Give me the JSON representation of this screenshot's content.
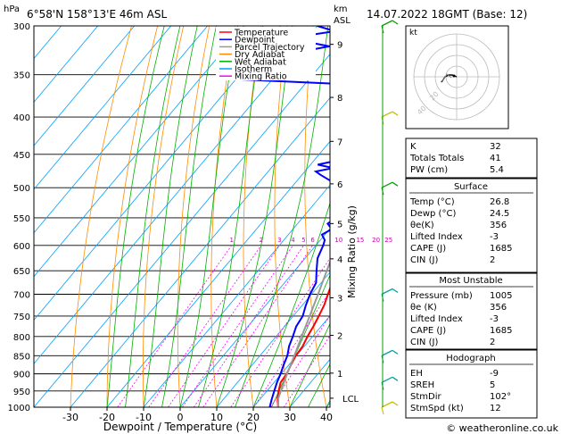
{
  "header": {
    "hpa_label": "hPa",
    "location": "6°58'N 158°13'E 46m ASL",
    "km_label": "km",
    "asl_label": "ASL",
    "datetime": "14.07.2022 18GMT (Base: 12)"
  },
  "legend": [
    {
      "label": "Temperature",
      "color": "#ff0000"
    },
    {
      "label": "Dewpoint",
      "color": "#0000ff"
    },
    {
      "label": "Parcel Trajectory",
      "color": "#999999"
    },
    {
      "label": "Dry Adiabat",
      "color": "#ff8c00"
    },
    {
      "label": "Wet Adiabat",
      "color": "#00b000"
    },
    {
      "label": "Isotherm",
      "color": "#00a0ff"
    },
    {
      "label": "Mixing Ratio",
      "color": "#ff00ff"
    }
  ],
  "chart_data": {
    "type": "skew-t",
    "xlabel": "Dewpoint / Temperature (°C)",
    "ylabel_right": "Mixing Ratio (g/kg)",
    "x_ticks": [
      -30,
      -20,
      -10,
      0,
      10,
      20,
      30,
      40
    ],
    "pressure_ticks": [
      300,
      350,
      400,
      450,
      500,
      550,
      600,
      650,
      700,
      750,
      800,
      850,
      900,
      950,
      1000
    ],
    "km_ticks": [
      {
        "label": "9",
        "p": 318
      },
      {
        "label": "8",
        "p": 376
      },
      {
        "label": "7",
        "p": 432
      },
      {
        "label": "6",
        "p": 494
      },
      {
        "label": "5",
        "p": 560
      },
      {
        "label": "4",
        "p": 626
      },
      {
        "label": "3",
        "p": 708
      },
      {
        "label": "2",
        "p": 797
      },
      {
        "label": "1",
        "p": 898
      },
      {
        "label": "LCL",
        "p": 972
      }
    ],
    "mixing_ratio_labels": [
      "1",
      "2",
      "3",
      "4",
      "5",
      "6",
      "10",
      "15",
      "20",
      "25"
    ],
    "series": [
      {
        "name": "Temperature",
        "points": [
          [
            1000,
            26.8
          ],
          [
            975,
            24.8
          ],
          [
            950,
            23.2
          ],
          [
            925,
            21.8
          ],
          [
            900,
            21.5
          ],
          [
            875,
            20.6
          ],
          [
            850,
            19.8
          ],
          [
            825,
            19.5
          ],
          [
            800,
            18.6
          ],
          [
            775,
            17.9
          ],
          [
            750,
            17
          ],
          [
            725,
            16
          ],
          [
            700,
            14.5
          ],
          [
            675,
            13
          ],
          [
            650,
            11.2
          ],
          [
            625,
            9.4
          ],
          [
            600,
            7.8
          ],
          [
            575,
            6
          ],
          [
            550,
            3.6
          ],
          [
            525,
            1.2
          ],
          [
            500,
            -1.2
          ],
          [
            475,
            -4
          ],
          [
            450,
            -7
          ],
          [
            425,
            -10
          ],
          [
            400,
            -13
          ],
          [
            375,
            -16.5
          ],
          [
            350,
            -20
          ]
        ]
      },
      {
        "name": "Dewpoint",
        "points": [
          [
            1000,
            24.5
          ],
          [
            975,
            23.2
          ],
          [
            950,
            22
          ],
          [
            925,
            20.8
          ],
          [
            900,
            19.8
          ],
          [
            875,
            18.6
          ],
          [
            850,
            17.5
          ],
          [
            825,
            15.8
          ],
          [
            800,
            14.6
          ],
          [
            775,
            13.2
          ],
          [
            750,
            12.6
          ],
          [
            725,
            11
          ],
          [
            700,
            9.6
          ],
          [
            675,
            8.6
          ],
          [
            650,
            6
          ],
          [
            625,
            3.4
          ],
          [
            600,
            2
          ],
          [
            590,
            1.2
          ],
          [
            580,
            -0.8
          ],
          [
            570,
            0.6
          ],
          [
            560,
            -1.8
          ],
          [
            550,
            -1
          ],
          [
            540,
            -3
          ],
          [
            525,
            -4.5
          ],
          [
            500,
            -8
          ],
          [
            490,
            -10.5
          ],
          [
            480,
            -15
          ],
          [
            475,
            -17
          ],
          [
            470,
            -13
          ],
          [
            465,
            -18
          ],
          [
            460,
            -14.5
          ],
          [
            450,
            -13
          ],
          [
            440,
            -16
          ],
          [
            425,
            -15.5
          ],
          [
            410,
            -20
          ],
          [
            400,
            -22.5
          ],
          [
            385,
            -24
          ],
          [
            370,
            -30
          ],
          [
            360,
            -32
          ],
          [
            355,
            -60
          ],
          [
            350,
            -50
          ],
          [
            345,
            -45
          ],
          [
            342,
            -58
          ],
          [
            336,
            -47
          ],
          [
            330,
            -54
          ],
          [
            320,
            -42
          ],
          [
            312,
            -55
          ],
          [
            305,
            -44
          ],
          [
            300,
            -50
          ]
        ]
      },
      {
        "name": "Parcel Trajectory",
        "points": [
          [
            1000,
            26.8
          ],
          [
            972,
            24.8
          ],
          [
            950,
            23.8
          ],
          [
            900,
            21.6
          ],
          [
            850,
            19.4
          ],
          [
            800,
            17
          ],
          [
            750,
            14.5
          ],
          [
            700,
            11.8
          ],
          [
            650,
            8.8
          ],
          [
            600,
            5.6
          ],
          [
            550,
            2
          ],
          [
            500,
            -2
          ],
          [
            450,
            -6.5
          ],
          [
            400,
            -11.8
          ],
          [
            370,
            -15
          ]
        ]
      }
    ]
  },
  "hodograph": {
    "label": "kt",
    "ring_labels": [
      "20",
      "40"
    ]
  },
  "indices": {
    "rows": [
      {
        "label": "K",
        "value": "32"
      },
      {
        "label": "Totals Totals",
        "value": "41"
      },
      {
        "label": "PW (cm)",
        "value": "5.4"
      }
    ]
  },
  "surface": {
    "title": "Surface",
    "rows": [
      {
        "label": "Temp (°C)",
        "value": "26.8"
      },
      {
        "label": "Dewp (°C)",
        "value": "24.5"
      },
      {
        "label": "θe(K)",
        "value": "356"
      },
      {
        "label": "Lifted Index",
        "value": "-3"
      },
      {
        "label": "CAPE (J)",
        "value": "1685"
      },
      {
        "label": "CIN (J)",
        "value": "2"
      }
    ]
  },
  "most_unstable": {
    "title": "Most Unstable",
    "rows": [
      {
        "label": "Pressure (mb)",
        "value": "1005"
      },
      {
        "label": "θe (K)",
        "value": "356"
      },
      {
        "label": "Lifted Index",
        "value": "-3"
      },
      {
        "label": "CAPE (J)",
        "value": "1685"
      },
      {
        "label": "CIN (J)",
        "value": "2"
      }
    ]
  },
  "hodograph_table": {
    "title": "Hodograph",
    "rows": [
      {
        "label": "EH",
        "value": "-9"
      },
      {
        "label": "SREH",
        "value": "5"
      },
      {
        "label": "StmDir",
        "value": "102°"
      },
      {
        "label": "StmSpd (kt)",
        "value": "12"
      }
    ]
  },
  "copyright": "© weatheronline.co.uk"
}
